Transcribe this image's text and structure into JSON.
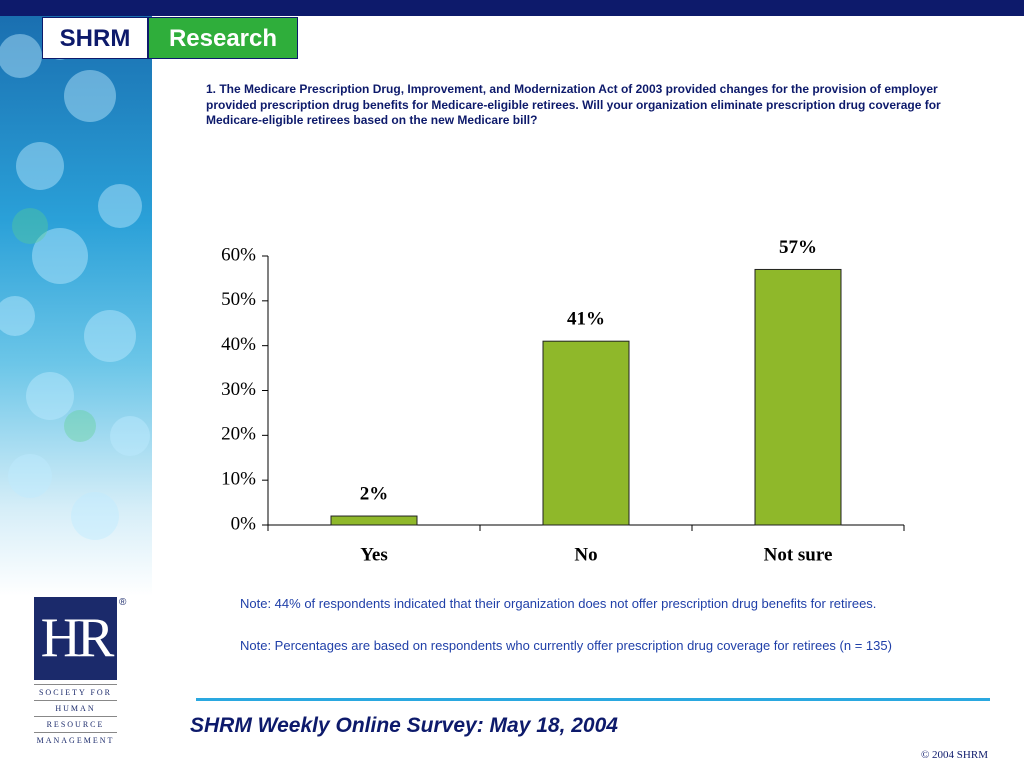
{
  "header": {
    "brand": "SHRM",
    "section": "Research"
  },
  "question": "1.  The Medicare Prescription Drug, Improvement, and Modernization Act of 2003 provided changes for the provision of employer provided prescription drug benefits for Medicare-eligible retirees.  Will your organization eliminate prescription drug coverage for Medicare-eligible retirees based on the new Medicare bill?",
  "chart_data": {
    "type": "bar",
    "categories": [
      "Yes",
      "No",
      "Not sure"
    ],
    "values": [
      2,
      41,
      57
    ],
    "value_labels": [
      "2%",
      "41%",
      "57%"
    ],
    "color": "#8fb82a",
    "ylim": [
      0,
      60
    ],
    "yticks": [
      {
        "value": 0,
        "label": "0%"
      },
      {
        "value": 10,
        "label": "10%"
      },
      {
        "value": 20,
        "label": "20%"
      },
      {
        "value": 30,
        "label": "30%"
      },
      {
        "value": 40,
        "label": "40%"
      },
      {
        "value": 50,
        "label": "50%"
      },
      {
        "value": 60,
        "label": "60%"
      }
    ]
  },
  "notes": [
    "Note: 44% of respondents indicated that their organization does not offer prescription drug benefits for retirees.",
    "Note: Percentages are based on respondents who currently offer prescription drug coverage for retirees (n = 135)"
  ],
  "logo": {
    "mark": "HR",
    "registered": "®",
    "lines": [
      "SOCIETY FOR",
      "HUMAN",
      "RESOURCE",
      "MANAGEMENT"
    ]
  },
  "footer": {
    "title": "SHRM Weekly Online Survey: May 18, 2004",
    "copyright": "© 2004 SHRM"
  }
}
